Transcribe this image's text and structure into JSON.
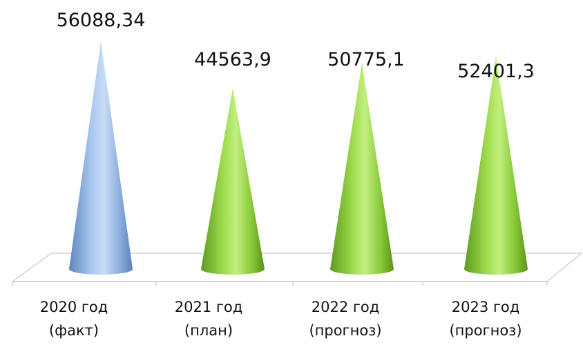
{
  "chart_data": {
    "type": "bar",
    "shape": "cone-3d",
    "categories": [
      [
        "2020 год",
        "(факт)"
      ],
      [
        "2021 год",
        "(план)"
      ],
      [
        "2022 год",
        "(прогноз)"
      ],
      [
        "2023 год",
        "(прогноз)"
      ]
    ],
    "values": [
      56088.34,
      44563.9,
      50775.1,
      52401.3
    ],
    "value_labels": [
      "56088,34",
      "44563,9",
      "50775,1",
      "52401,3"
    ],
    "colors": [
      "#8fb4e3",
      "#8ccf3a",
      "#8ccf3a",
      "#8ccf3a"
    ],
    "ylim": [
      0,
      56088.34
    ],
    "grid": false,
    "legend": "none"
  }
}
